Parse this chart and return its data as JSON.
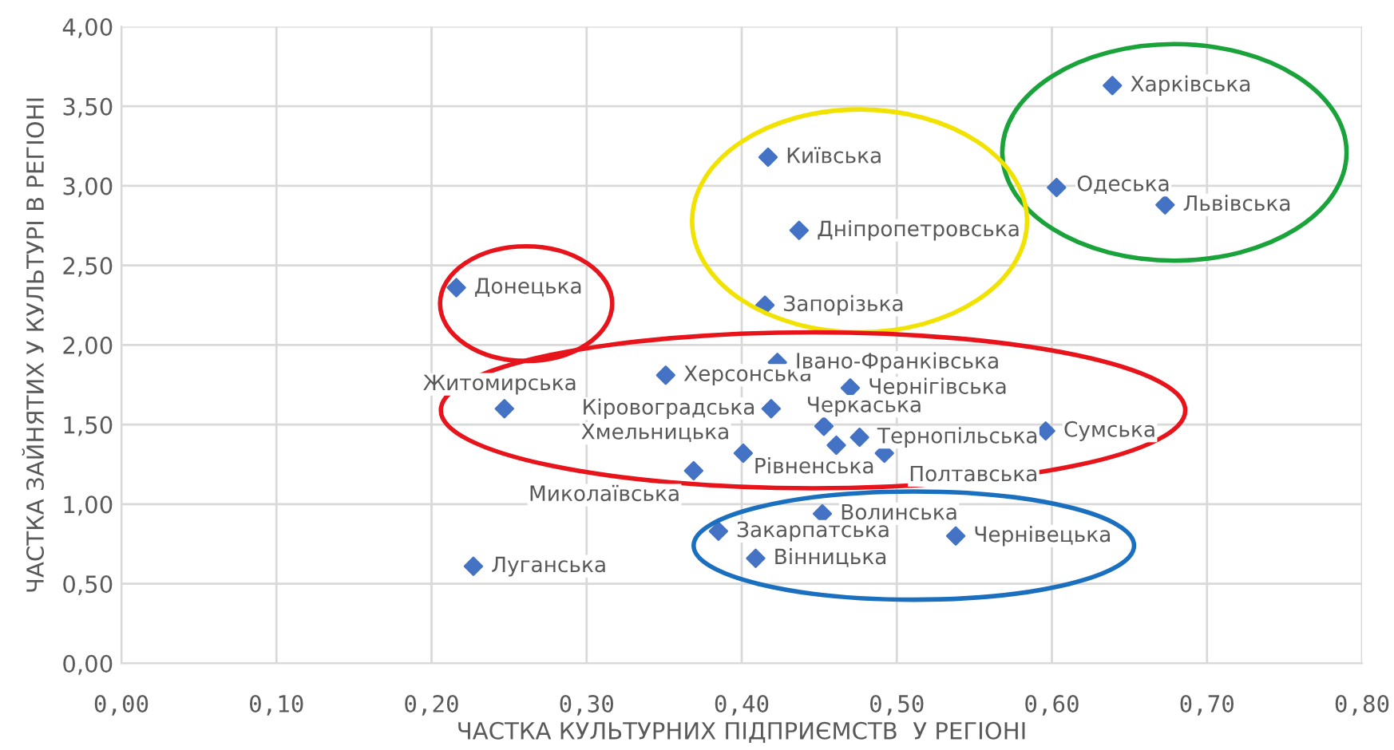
{
  "chart_data": {
    "type": "scatter",
    "xlabel": "ЧАСТКА КУЛЬТУРНИХ ПІДПРИЄМСТВ  У РЕГІОНІ",
    "ylabel": "ЧАСТКА ЗАЙНЯТИХ У КУЛЬТУРІ В РЕГІОНІ",
    "xlim": [
      0,
      0.8
    ],
    "ylim": [
      0,
      4
    ],
    "xticks": [
      {
        "value": 0,
        "label": "0,00"
      },
      {
        "value": 0.1,
        "label": "0,10"
      },
      {
        "value": 0.2,
        "label": "0,20"
      },
      {
        "value": 0.3,
        "label": "0,30"
      },
      {
        "value": 0.4,
        "label": "0,40"
      },
      {
        "value": 0.5,
        "label": "0,50"
      },
      {
        "value": 0.6,
        "label": "0,60"
      },
      {
        "value": 0.7,
        "label": "0,70"
      },
      {
        "value": 0.8,
        "label": "0,80"
      }
    ],
    "yticks": [
      {
        "value": 0,
        "label": "0,00"
      },
      {
        "value": 0.5,
        "label": "0,50"
      },
      {
        "value": 1,
        "label": "1,00"
      },
      {
        "value": 1.5,
        "label": "1,50"
      },
      {
        "value": 2,
        "label": "2,00"
      },
      {
        "value": 2.5,
        "label": "2,50"
      },
      {
        "value": 3,
        "label": "3,00"
      },
      {
        "value": 3.5,
        "label": "3,50"
      },
      {
        "value": 4,
        "label": "4,00"
      }
    ],
    "grid": true,
    "marker": "diamond",
    "legend": false,
    "series": [
      {
        "color": "#4472c4",
        "x": [
          0.639,
          0.603,
          0.673,
          0.417,
          0.437,
          0.415,
          0.216,
          0.247,
          0.227,
          0.351,
          0.369,
          0.401,
          0.423,
          0.47,
          0.419,
          0.453,
          0.476,
          0.461,
          0.492,
          0.596,
          0.452,
          0.385,
          0.409,
          0.538
        ],
        "values": [
          3.63,
          2.99,
          2.88,
          3.18,
          2.72,
          2.25,
          2.36,
          1.6,
          0.61,
          1.81,
          1.21,
          1.32,
          1.89,
          1.73,
          1.6,
          1.49,
          1.42,
          1.37,
          1.32,
          1.46,
          0.94,
          0.83,
          0.66,
          0.8
        ],
        "value_labels": [
          "Харківська",
          "Одеська",
          "Львівська",
          "Київська",
          "Дніпропетровська",
          "Запорізька",
          "Донецька",
          "Житомирська",
          "Луганська",
          "Херсонська",
          "Миколаївська",
          "Хмельницька",
          "Івано-Франківська",
          "Чернігівська",
          "Кіровоградська",
          "Черкаська",
          "Тернопільська",
          "Рівненська",
          "Полтавська",
          "Сумська",
          "Волинська",
          "Закарпатська",
          "Вінницька",
          "Чернівецька"
        ]
      }
    ]
  }
}
